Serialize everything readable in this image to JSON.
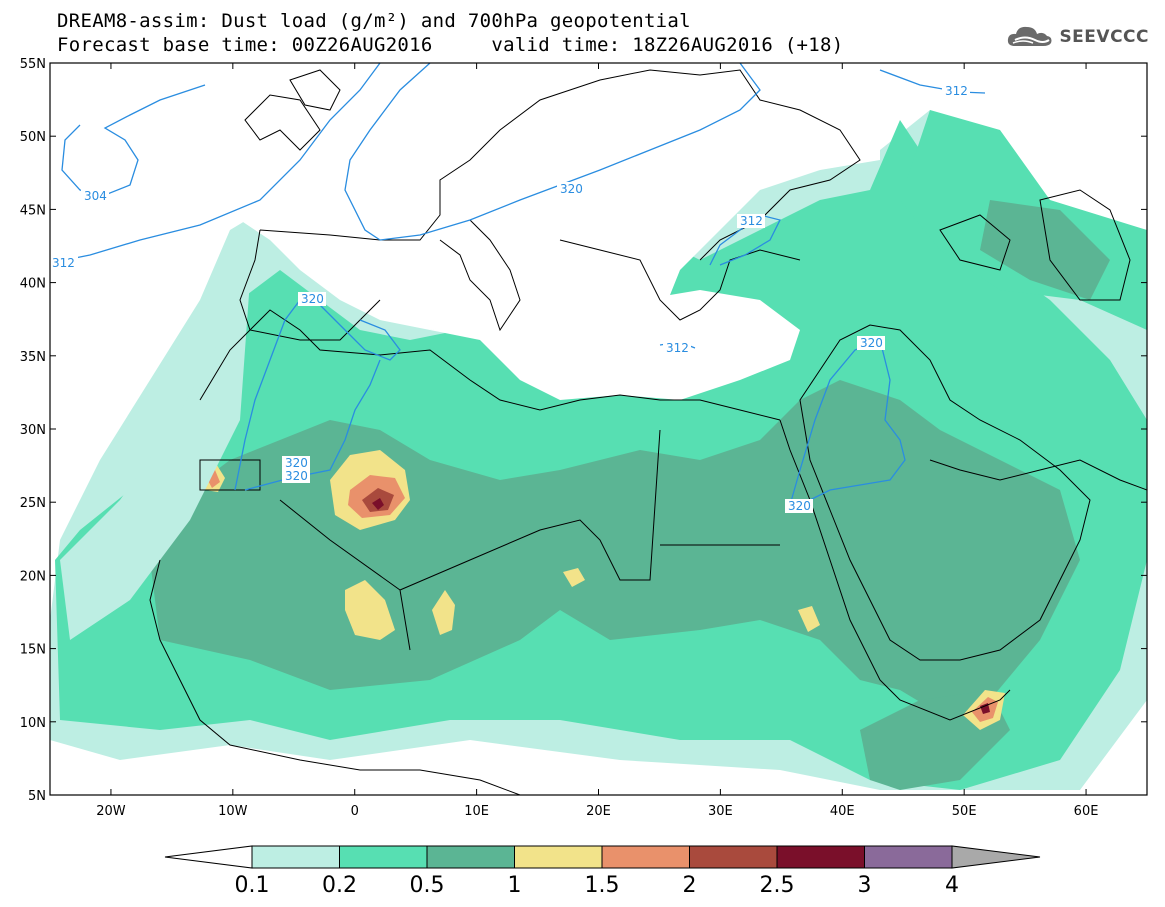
{
  "title": {
    "line1": "DREAM8-assim: Dust load (g/m²) and 700hPa geopotential",
    "line2": "Forecast base time: 00Z26AUG2016     valid time: 18Z26AUG2016 (+18)"
  },
  "logo": {
    "text": "SEEVCCC",
    "icon": "cloud-logo-icon"
  },
  "map": {
    "lat_ticks": [
      "55N",
      "50N",
      "45N",
      "40N",
      "35N",
      "30N",
      "25N",
      "20N",
      "15N",
      "10N",
      "5N"
    ],
    "lon_ticks": [
      "20W",
      "10W",
      "0",
      "10E",
      "20E",
      "30E",
      "40E",
      "50E",
      "60E"
    ],
    "lat_range": [
      5,
      55
    ],
    "lon_range": [
      -25,
      65
    ],
    "contour_labels": [
      "304",
      "312",
      "320",
      "320",
      "312",
      "312",
      "320",
      "320",
      "320",
      "320",
      "312"
    ]
  },
  "colorbar": {
    "labels": [
      "0.1",
      "0.2",
      "0.5",
      "1",
      "1.5",
      "2",
      "2.5",
      "3",
      "4"
    ],
    "colors": [
      "#ffffff",
      "#bdeee3",
      "#57dfb2",
      "#5bb594",
      "#f2e38a",
      "#e9916b",
      "#a94a3d",
      "#7a0f2a",
      "#8a6a9a",
      "#a9a9a9"
    ]
  }
}
